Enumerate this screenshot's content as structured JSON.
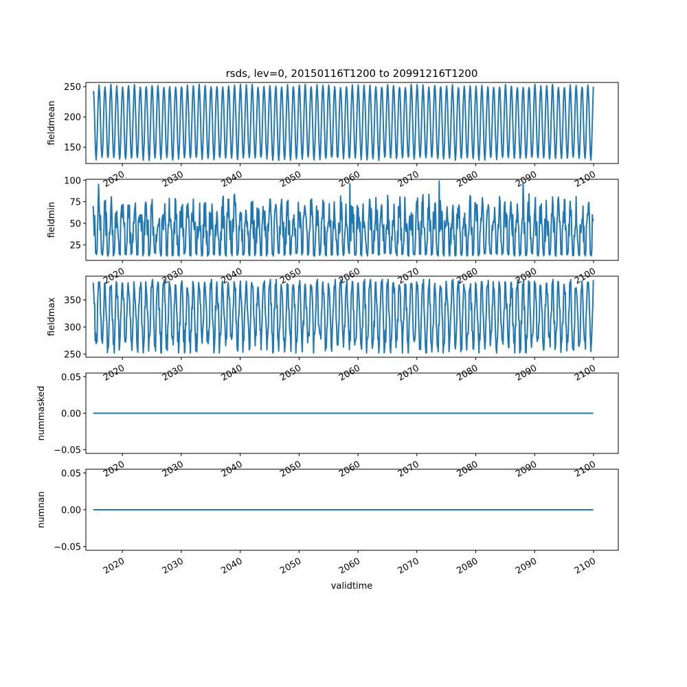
{
  "chart_data": {
    "title": "rsds, lev=0, 20150116T1200 to 20991216T1200",
    "xlabel": "validtime",
    "type": "line",
    "series_color": "#1f77b4",
    "x_range": [
      "2015-01-16T12:00",
      "2099-12-16T12:00"
    ],
    "xlim": [
      2013.8,
      2104.2
    ],
    "x_ticks": [
      "2020",
      "2030",
      "2040",
      "2050",
      "2060",
      "2070",
      "2080",
      "2090",
      "2100"
    ],
    "x_tick_values": [
      2020,
      2030,
      2040,
      2050,
      2060,
      2070,
      2080,
      2090,
      2100
    ],
    "panels": [
      {
        "ylabel": "fieldmean",
        "ylim": [
          123,
          257
        ],
        "y_ticks": [
          150,
          200,
          250
        ],
        "y_tick_labels": [
          "150",
          "200",
          "250"
        ],
        "seasonal_min": 131,
        "seasonal_max": 251,
        "first_value": 239,
        "last_value": 250
      },
      {
        "ylabel": "fieldmin",
        "ylim": [
          7,
          101
        ],
        "y_ticks": [
          25,
          50,
          75,
          100
        ],
        "y_tick_labels": [
          "25",
          "50",
          "75",
          "100"
        ],
        "seasonal_min": 12,
        "seasonal_max": 78,
        "extreme_peaks": [
          {
            "x": 2016.0,
            "y": 95
          },
          {
            "x": 2073.8,
            "y": 99
          },
          {
            "x": 2088.0,
            "y": 98
          },
          {
            "x": 2058.6,
            "y": 96
          }
        ],
        "first_value": 70,
        "last_value": 55
      },
      {
        "ylabel": "fieldmax",
        "ylim": [
          244,
          394
        ],
        "y_ticks": [
          250,
          300,
          350
        ],
        "y_tick_labels": [
          "250",
          "300",
          "350"
        ],
        "seasonal_min": 265,
        "seasonal_max": 380,
        "first_value": 382,
        "last_value": 387
      },
      {
        "ylabel": "nummasked",
        "ylim": [
          -0.055,
          0.055
        ],
        "y_ticks": [
          -0.05,
          0.0,
          0.05
        ],
        "y_tick_labels": [
          "−0.05",
          "0.00",
          "0.05"
        ],
        "constant_value": 0.0
      },
      {
        "ylabel": "numnan",
        "ylim": [
          -0.055,
          0.055
        ],
        "y_ticks": [
          -0.05,
          0.0,
          0.05
        ],
        "y_tick_labels": [
          "−0.05",
          "0.00",
          "0.05"
        ],
        "constant_value": 0.0
      }
    ]
  }
}
